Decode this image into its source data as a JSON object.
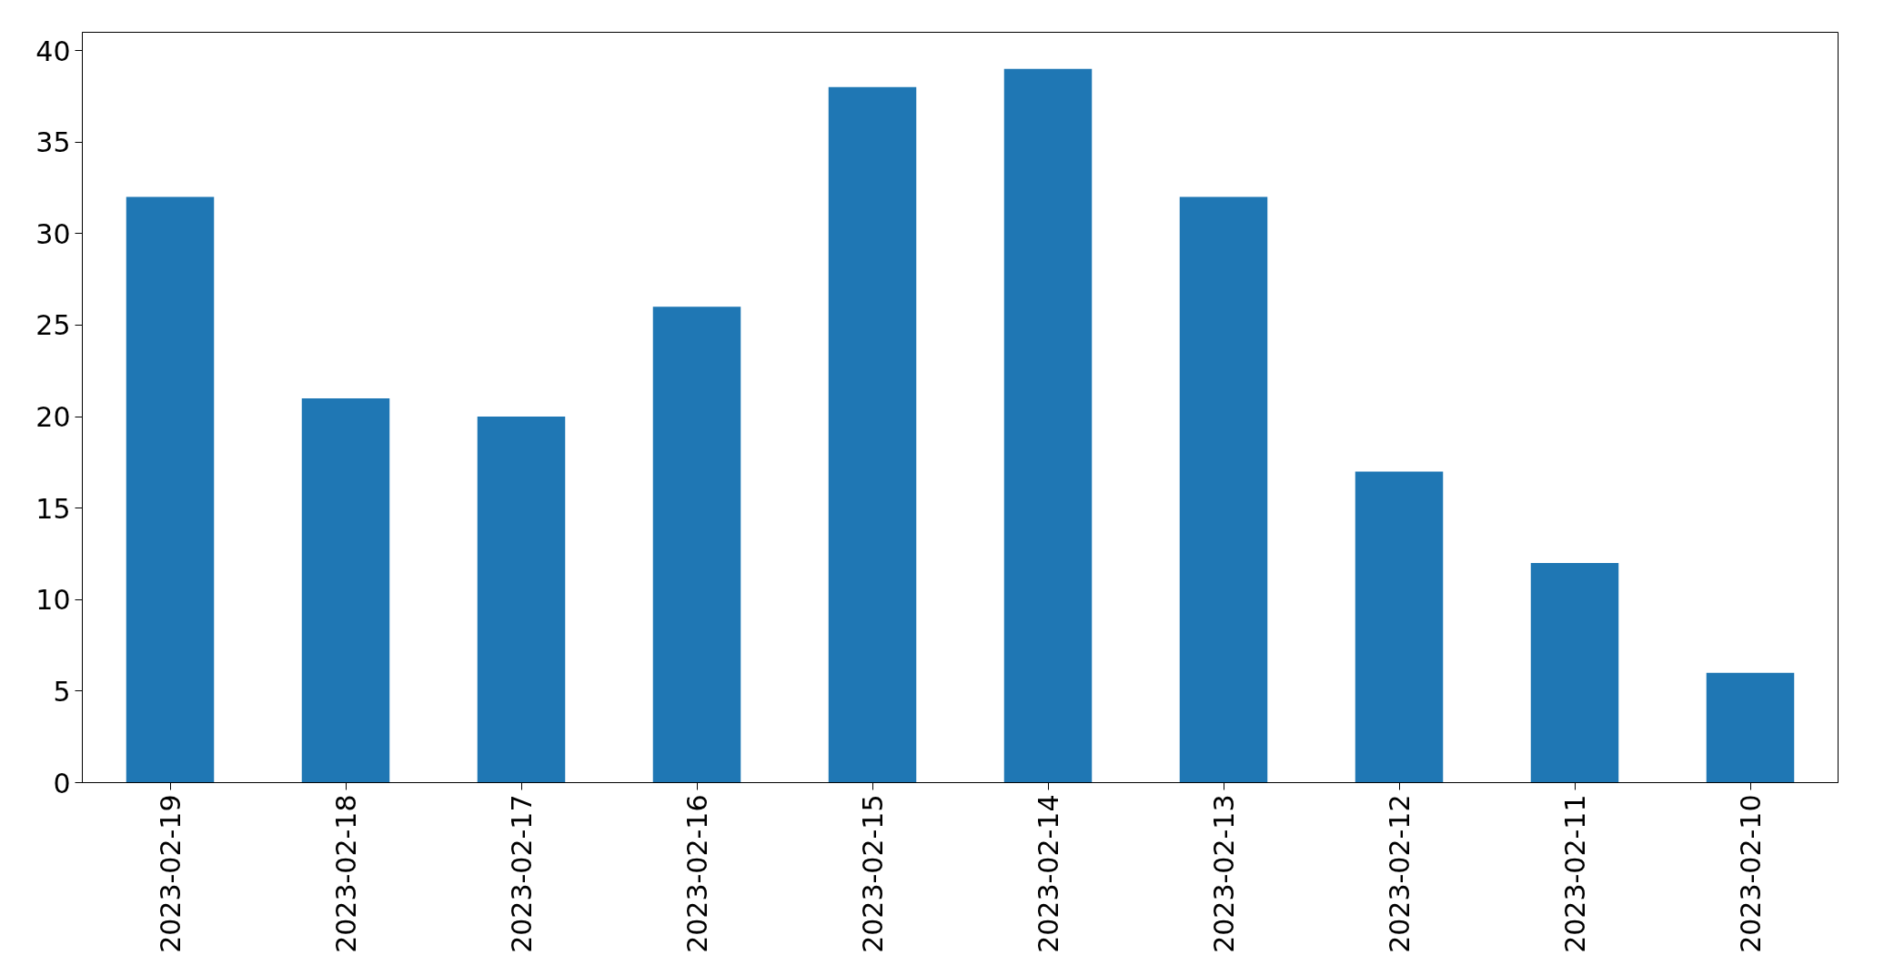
{
  "chart_data": {
    "type": "bar",
    "categories": [
      "2023-02-19",
      "2023-02-18",
      "2023-02-17",
      "2023-02-16",
      "2023-02-15",
      "2023-02-14",
      "2023-02-13",
      "2023-02-12",
      "2023-02-11",
      "2023-02-10"
    ],
    "values": [
      32,
      21,
      20,
      26,
      38,
      39,
      32,
      17,
      12,
      6
    ],
    "color": "#1f77b4",
    "ylim": [
      0,
      41
    ],
    "yticks": [
      0,
      5,
      10,
      15,
      20,
      25,
      30,
      35,
      40
    ]
  }
}
